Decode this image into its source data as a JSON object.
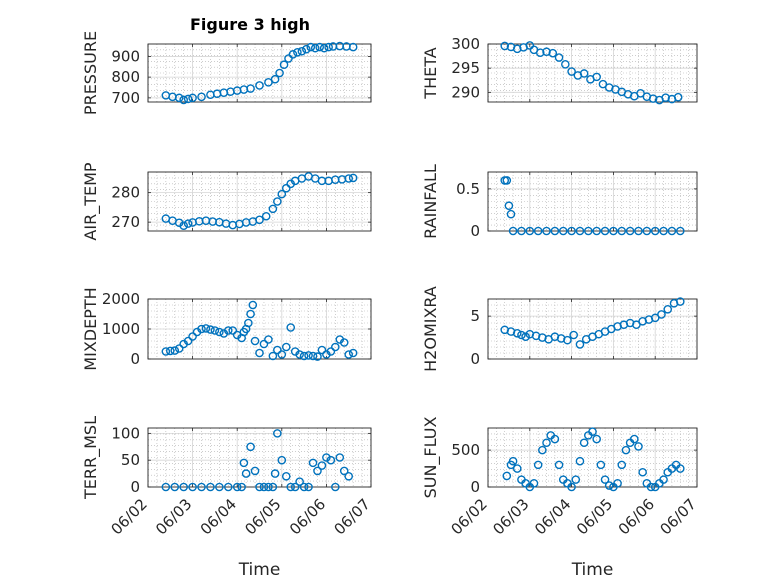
{
  "figure": {
    "title": "Figure 3 high",
    "x_axis_label": "Time",
    "x_tick_labels": [
      "06/02",
      "06/03",
      "06/04",
      "06/05",
      "06/06",
      "06/07"
    ],
    "marker_color": "#0072BD",
    "grid_color": "#b0b0b0"
  },
  "chart_data": [
    {
      "type": "scatter",
      "name": "pressure",
      "position": "row 1, left",
      "title": "Figure 3 high",
      "ylabel": "PRESSURE",
      "xlabel": "",
      "xlim": [
        0,
        5
      ],
      "ylim": [
        680,
        960
      ],
      "yticks": [
        700,
        800,
        900
      ],
      "grid": true,
      "x": [
        0.4,
        0.55,
        0.7,
        0.8,
        0.9,
        1.0,
        1.2,
        1.4,
        1.55,
        1.7,
        1.85,
        2.0,
        2.15,
        2.3,
        2.5,
        2.7,
        2.85,
        2.95,
        3.05,
        3.15,
        3.25,
        3.35,
        3.45,
        3.55,
        3.65,
        3.75,
        3.85,
        3.95,
        4.05,
        4.15,
        4.3,
        4.45,
        4.6
      ],
      "y": [
        712,
        705,
        700,
        690,
        695,
        700,
        705,
        715,
        720,
        725,
        730,
        735,
        740,
        745,
        760,
        775,
        790,
        820,
        860,
        890,
        910,
        920,
        925,
        935,
        945,
        940,
        945,
        940,
        945,
        948,
        950,
        948,
        945
      ]
    },
    {
      "type": "scatter",
      "name": "theta",
      "position": "row 1, right",
      "ylabel": "THETA",
      "xlabel": "",
      "xlim": [
        0,
        5
      ],
      "ylim": [
        288,
        300
      ],
      "yticks": [
        290,
        295,
        300
      ],
      "grid": true,
      "x": [
        0.4,
        0.55,
        0.7,
        0.85,
        1.0,
        1.1,
        1.25,
        1.4,
        1.55,
        1.7,
        1.85,
        2.0,
        2.15,
        2.3,
        2.45,
        2.6,
        2.75,
        2.9,
        3.05,
        3.2,
        3.35,
        3.5,
        3.65,
        3.8,
        3.95,
        4.1,
        4.25,
        4.4,
        4.55
      ],
      "y": [
        299.6,
        299.4,
        299.0,
        299.3,
        299.7,
        298.8,
        298.2,
        298.4,
        298.1,
        297.2,
        295.8,
        294.3,
        293.5,
        293.9,
        292.7,
        293.2,
        291.7,
        291.0,
        290.6,
        290.1,
        289.6,
        289.2,
        289.8,
        289.1,
        288.7,
        288.4,
        288.9,
        288.6,
        289.0
      ]
    },
    {
      "type": "scatter",
      "name": "air_temp",
      "position": "row 2, left",
      "ylabel": "AIR_TEMP",
      "xlabel": "",
      "xlim": [
        0,
        5
      ],
      "ylim": [
        267,
        287
      ],
      "yticks": [
        270,
        280
      ],
      "grid": true,
      "x": [
        0.4,
        0.55,
        0.7,
        0.8,
        0.9,
        1.0,
        1.15,
        1.3,
        1.45,
        1.6,
        1.75,
        1.9,
        2.05,
        2.2,
        2.35,
        2.5,
        2.65,
        2.8,
        2.9,
        3.0,
        3.1,
        3.2,
        3.3,
        3.45,
        3.6,
        3.75,
        3.9,
        4.05,
        4.2,
        4.35,
        4.5,
        4.6
      ],
      "y": [
        271.2,
        270.5,
        269.8,
        268.8,
        269.5,
        269.9,
        270.3,
        270.5,
        270.2,
        270.0,
        269.5,
        269.0,
        269.4,
        269.9,
        270.2,
        270.8,
        272.0,
        274.5,
        277.0,
        279.5,
        281.5,
        283.0,
        284.0,
        284.8,
        285.5,
        284.8,
        284.0,
        284.0,
        284.4,
        284.5,
        284.8,
        285.0
      ]
    },
    {
      "type": "scatter",
      "name": "rainfall",
      "position": "row 2, right",
      "ylabel": "RAINFALL",
      "xlabel": "",
      "xlim": [
        0,
        5
      ],
      "ylim": [
        0,
        0.7
      ],
      "yticks": [
        0,
        0.5
      ],
      "grid": true,
      "x": [
        0.4,
        0.45,
        0.5,
        0.55,
        0.6,
        0.8,
        1.0,
        1.2,
        1.4,
        1.6,
        1.8,
        2.0,
        2.2,
        2.4,
        2.6,
        2.8,
        3.0,
        3.2,
        3.4,
        3.6,
        3.8,
        4.0,
        4.2,
        4.4,
        4.6
      ],
      "y": [
        0.6,
        0.6,
        0.3,
        0.2,
        0,
        0,
        0,
        0,
        0,
        0,
        0,
        0,
        0,
        0,
        0,
        0,
        0,
        0,
        0,
        0,
        0,
        0,
        0,
        0,
        0
      ]
    },
    {
      "type": "scatter",
      "name": "mixdepth",
      "position": "row 3, left",
      "ylabel": "MIXDEPTH",
      "xlabel": "",
      "xlim": [
        0,
        5
      ],
      "ylim": [
        0,
        2000
      ],
      "yticks": [
        0,
        1000,
        2000
      ],
      "grid": true,
      "x": [
        0.4,
        0.5,
        0.6,
        0.7,
        0.8,
        0.9,
        1.0,
        1.1,
        1.2,
        1.3,
        1.4,
        1.5,
        1.6,
        1.7,
        1.8,
        1.9,
        2.0,
        2.1,
        2.15,
        2.2,
        2.25,
        2.3,
        2.35,
        2.4,
        2.5,
        2.6,
        2.7,
        2.8,
        2.9,
        3.0,
        3.1,
        3.2,
        3.3,
        3.4,
        3.5,
        3.6,
        3.7,
        3.8,
        3.9,
        4.0,
        4.1,
        4.2,
        4.3,
        4.4,
        4.5,
        4.6
      ],
      "y": [
        250,
        270,
        280,
        350,
        500,
        600,
        750,
        900,
        1000,
        1020,
        980,
        950,
        900,
        850,
        950,
        950,
        800,
        700,
        900,
        1000,
        1200,
        1500,
        1800,
        600,
        200,
        500,
        650,
        100,
        300,
        150,
        400,
        1050,
        250,
        150,
        100,
        120,
        100,
        80,
        300,
        150,
        250,
        400,
        650,
        550,
        150,
        200
      ]
    },
    {
      "type": "scatter",
      "name": "h2omixra",
      "position": "row 3, right",
      "ylabel": "H2OMIXRA",
      "xlabel": "",
      "xlim": [
        0,
        5
      ],
      "ylim": [
        0,
        7
      ],
      "yticks": [
        0,
        5
      ],
      "grid": true,
      "x": [
        0.4,
        0.55,
        0.7,
        0.8,
        0.9,
        1.0,
        1.15,
        1.3,
        1.45,
        1.6,
        1.75,
        1.9,
        2.05,
        2.2,
        2.35,
        2.5,
        2.65,
        2.8,
        2.95,
        3.1,
        3.25,
        3.4,
        3.55,
        3.7,
        3.85,
        4.0,
        4.15,
        4.3,
        4.45,
        4.6
      ],
      "y": [
        3.4,
        3.2,
        3.0,
        2.8,
        2.6,
        2.9,
        2.7,
        2.5,
        2.3,
        2.6,
        2.4,
        2.2,
        2.8,
        1.7,
        2.3,
        2.6,
        2.9,
        3.2,
        3.5,
        3.8,
        4.0,
        4.2,
        4.0,
        4.4,
        4.6,
        4.8,
        5.2,
        5.8,
        6.5,
        6.7
      ]
    },
    {
      "type": "scatter",
      "name": "terr_msl",
      "position": "row 4, left",
      "ylabel": "TERR_MSL",
      "xlabel": "Time",
      "xlim": [
        0,
        5
      ],
      "ylim": [
        0,
        110
      ],
      "yticks": [
        0,
        50,
        100
      ],
      "grid": true,
      "x_tick_labels": [
        "06/02",
        "06/03",
        "06/04",
        "06/05",
        "06/06",
        "06/07"
      ],
      "x": [
        0.4,
        0.6,
        0.8,
        1.0,
        1.2,
        1.4,
        1.6,
        1.8,
        2.0,
        2.1,
        2.15,
        2.2,
        2.3,
        2.4,
        2.5,
        2.6,
        2.7,
        2.8,
        2.85,
        2.9,
        3.0,
        3.1,
        3.2,
        3.3,
        3.4,
        3.5,
        3.6,
        3.7,
        3.8,
        3.9,
        4.0,
        4.1,
        4.2,
        4.3,
        4.4,
        4.5
      ],
      "y": [
        0,
        0,
        0,
        0,
        0,
        0,
        0,
        0,
        0,
        0,
        45,
        25,
        75,
        30,
        0,
        0,
        0,
        0,
        25,
        100,
        50,
        20,
        0,
        0,
        10,
        0,
        0,
        45,
        30,
        40,
        55,
        50,
        0,
        55,
        30,
        20
      ]
    },
    {
      "type": "scatter",
      "name": "sun_flux",
      "position": "row 4, right",
      "ylabel": "SUN_FLUX",
      "xlabel": "Time",
      "xlim": [
        0,
        5
      ],
      "ylim": [
        0,
        800
      ],
      "yticks": [
        0,
        500
      ],
      "grid": true,
      "x_tick_labels": [
        "06/02",
        "06/03",
        "06/04",
        "06/05",
        "06/06",
        "06/07"
      ],
      "x": [
        0.45,
        0.55,
        0.6,
        0.7,
        0.8,
        0.9,
        1.0,
        1.1,
        1.2,
        1.3,
        1.4,
        1.5,
        1.6,
        1.7,
        1.8,
        1.9,
        2.0,
        2.1,
        2.2,
        2.3,
        2.4,
        2.5,
        2.6,
        2.7,
        2.8,
        2.9,
        3.0,
        3.1,
        3.2,
        3.3,
        3.4,
        3.5,
        3.6,
        3.7,
        3.8,
        3.9,
        4.0,
        4.1,
        4.2,
        4.3,
        4.4,
        4.5,
        4.6
      ],
      "y": [
        150,
        300,
        350,
        250,
        100,
        50,
        0,
        50,
        300,
        500,
        600,
        700,
        650,
        300,
        100,
        50,
        0,
        100,
        350,
        600,
        700,
        750,
        650,
        300,
        100,
        20,
        0,
        50,
        300,
        500,
        600,
        650,
        550,
        200,
        50,
        0,
        0,
        50,
        100,
        200,
        250,
        300,
        250
      ]
    }
  ]
}
